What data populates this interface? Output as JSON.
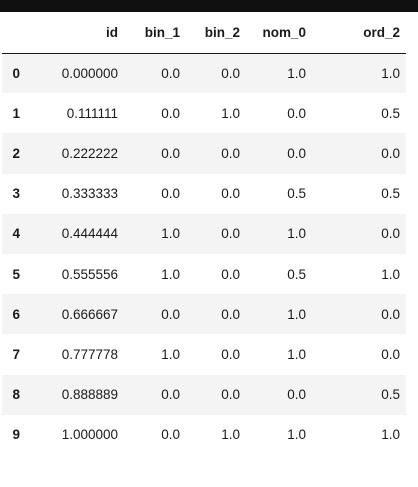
{
  "dataframe": {
    "columns": [
      "id",
      "bin_1",
      "bin_2",
      "nom_0",
      "ord_2"
    ],
    "rows": [
      {
        "index": "0",
        "id": "0.000000",
        "bin_1": "0.0",
        "bin_2": "0.0",
        "nom_0": "1.0",
        "ord_2": "1.0"
      },
      {
        "index": "1",
        "id": "0.111111",
        "bin_1": "0.0",
        "bin_2": "1.0",
        "nom_0": "0.0",
        "ord_2": "0.5"
      },
      {
        "index": "2",
        "id": "0.222222",
        "bin_1": "0.0",
        "bin_2": "0.0",
        "nom_0": "0.0",
        "ord_2": "0.0"
      },
      {
        "index": "3",
        "id": "0.333333",
        "bin_1": "0.0",
        "bin_2": "0.0",
        "nom_0": "0.5",
        "ord_2": "0.5"
      },
      {
        "index": "4",
        "id": "0.444444",
        "bin_1": "1.0",
        "bin_2": "0.0",
        "nom_0": "1.0",
        "ord_2": "0.0"
      },
      {
        "index": "5",
        "id": "0.555556",
        "bin_1": "1.0",
        "bin_2": "0.0",
        "nom_0": "0.5",
        "ord_2": "1.0"
      },
      {
        "index": "6",
        "id": "0.666667",
        "bin_1": "0.0",
        "bin_2": "0.0",
        "nom_0": "1.0",
        "ord_2": "0.0"
      },
      {
        "index": "7",
        "id": "0.777778",
        "bin_1": "1.0",
        "bin_2": "0.0",
        "nom_0": "1.0",
        "ord_2": "0.0"
      },
      {
        "index": "8",
        "id": "0.888889",
        "bin_1": "0.0",
        "bin_2": "0.0",
        "nom_0": "0.0",
        "ord_2": "0.5"
      },
      {
        "index": "9",
        "id": "1.000000",
        "bin_1": "0.0",
        "bin_2": "1.0",
        "nom_0": "1.0",
        "ord_2": "1.0"
      }
    ]
  }
}
